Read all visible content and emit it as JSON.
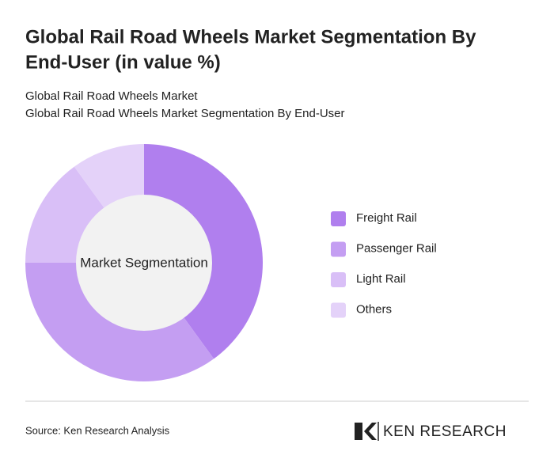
{
  "chart_data": {
    "type": "donut",
    "title": [
      "Global Rail Road Wheels Market Segmentation By",
      "End-User (in value %)"
    ],
    "subtitles": [
      "Global Rail Road Wheels Market",
      "Global Rail Road Wheels Market Segmentation By End-User"
    ],
    "center_label": "Market Segmentation",
    "categories": [
      "Freight Rail",
      "Passenger Rail",
      "Light Rail",
      "Others"
    ],
    "values": [
      40,
      35,
      15,
      10
    ],
    "colors": [
      "#b07fee",
      "#c49ef2",
      "#d9bff7",
      "#e4d2f9"
    ]
  },
  "footer": {
    "source": "Source: Ken Research Analysis",
    "brand": "KEN RESEARCH"
  }
}
